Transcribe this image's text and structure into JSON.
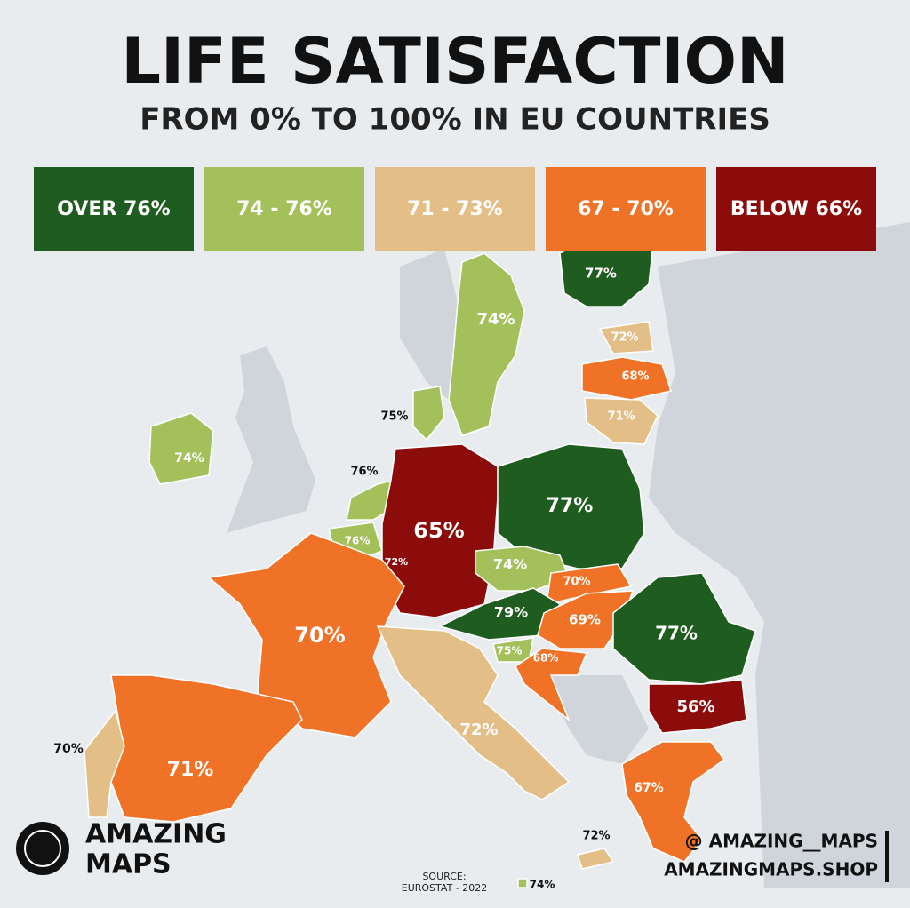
{
  "header": {
    "title": "LIFE SATISFACTION",
    "subtitle": "FROM 0% TO 100% IN EU COUNTRIES"
  },
  "legend": [
    {
      "label": "OVER 76%",
      "color": "#1f5c1f"
    },
    {
      "label": "74 - 76%",
      "color": "#a4c05a"
    },
    {
      "label": "71 - 73%",
      "color": "#e3be86"
    },
    {
      "label": "67 - 70%",
      "color": "#ef7226"
    },
    {
      "label": "BELOW 66%",
      "color": "#8c0c0c"
    }
  ],
  "regions": [
    {
      "label": "77%",
      "color": "#1f5c1f"
    },
    {
      "label": "74%",
      "color": "#a4c05a"
    },
    {
      "label": "72%",
      "color": "#e3be86"
    },
    {
      "label": "68%",
      "color": "#ef7226"
    },
    {
      "label": "71%",
      "color": "#e3be86"
    },
    {
      "label": "75%",
      "color": "#a4c05a"
    },
    {
      "label": "74%",
      "color": "#a4c05a"
    },
    {
      "label": "76%",
      "color": "#a4c05a"
    },
    {
      "label": "76%",
      "color": "#a4c05a"
    },
    {
      "label": "72%",
      "color": "#e3be86"
    },
    {
      "label": "65%",
      "color": "#8c0c0c"
    },
    {
      "label": "77%",
      "color": "#1f5c1f"
    },
    {
      "label": "74%",
      "color": "#a4c05a"
    },
    {
      "label": "70%",
      "color": "#ef7226"
    },
    {
      "label": "79%",
      "color": "#1f5c1f"
    },
    {
      "label": "69%",
      "color": "#ef7226"
    },
    {
      "label": "77%",
      "color": "#1f5c1f"
    },
    {
      "label": "75%",
      "color": "#a4c05a"
    },
    {
      "label": "68%",
      "color": "#ef7226"
    },
    {
      "label": "56%",
      "color": "#8c0c0c"
    },
    {
      "label": "70%",
      "color": "#ef7226"
    },
    {
      "label": "72%",
      "color": "#e3be86"
    },
    {
      "label": "70%",
      "color": "#ef7226"
    },
    {
      "label": "71%",
      "color": "#e3be86"
    },
    {
      "label": "67%",
      "color": "#ef7226"
    },
    {
      "label": "72%",
      "color": "#e3be86"
    },
    {
      "label": "74%",
      "color": "#a4c05a"
    }
  ],
  "branding": {
    "brand_line1": "AMAZING",
    "brand_line2": "MAPS",
    "instagram": "@ AMAZING__MAPS",
    "shop": "AMAZINGMAPS.SHOP"
  },
  "source": {
    "line1": "SOURCE:",
    "line2": "EUROSTAT - 2022"
  }
}
